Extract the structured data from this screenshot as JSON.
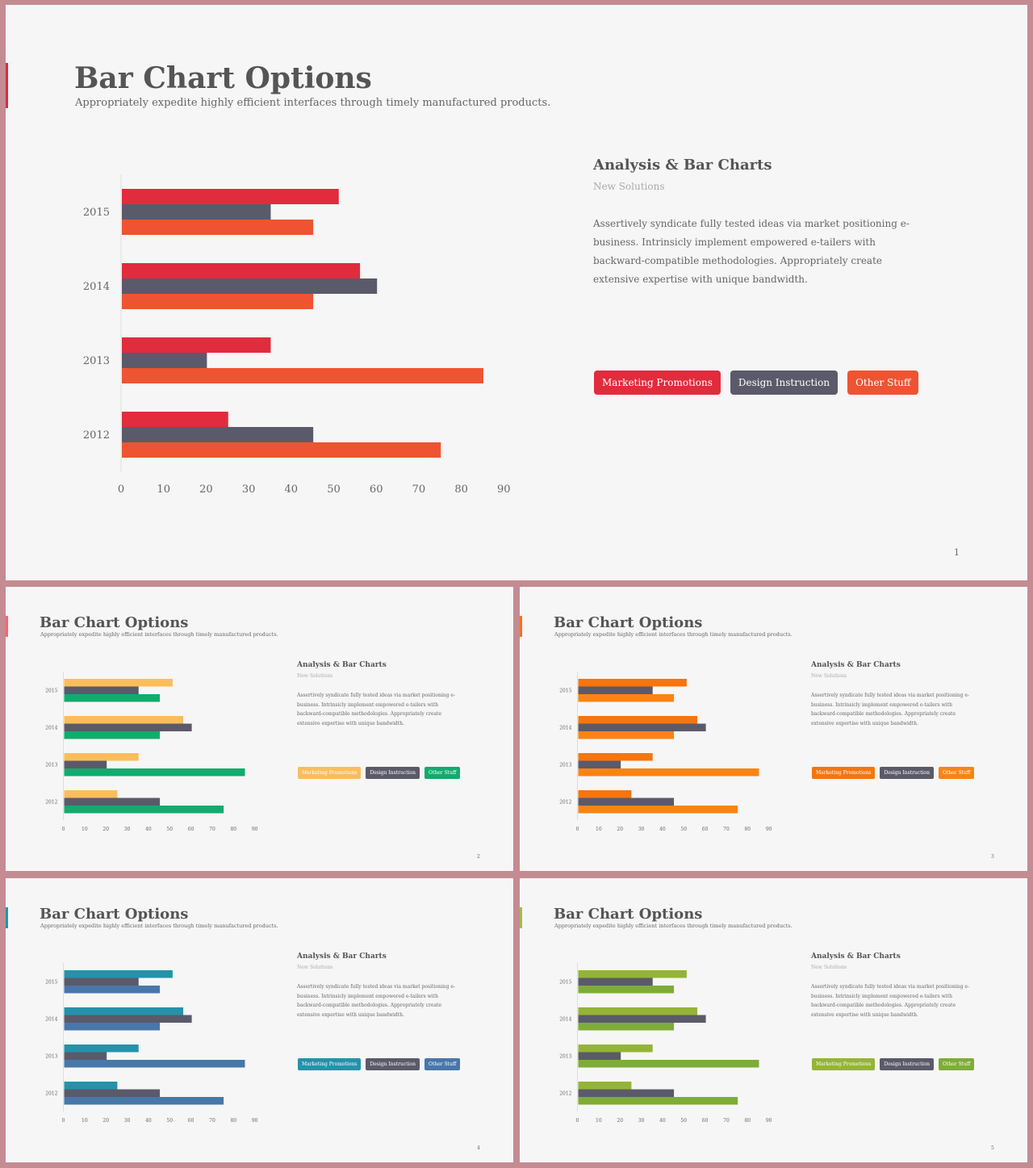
{
  "slides": [
    {
      "size": "large",
      "title": "Bar Chart Options",
      "subtitle": "Appropriately expedite highly efficient interfaces through timely manufactured products.",
      "heading": "Analysis & Bar Charts",
      "sub_heading": "New Solutions",
      "paragraph": "Assertively syndicate fully tested ideas via market positioning e-business. Intrinsicly implement empowered e-tailers with backward-compatible methodologies. Appropriately create extensive expertise with unique bandwidth.",
      "legend": [
        "Marketing Promotions",
        "Design Instruction",
        "Other Stuff"
      ],
      "page_number": "1",
      "colors": {
        "accent": "#d42e3e",
        "series": [
          "#e02c3c",
          "#5a5a6a",
          "#ee5431"
        ]
      }
    },
    {
      "size": "small",
      "title": "Bar Chart Options",
      "subtitle": "Appropriately expedite highly efficient interfaces through timely manufactured products.",
      "heading": "Analysis & Bar Charts",
      "sub_heading": "New Solutions",
      "paragraph": "Assertively syndicate fully tested ideas via market positioning e-business. Intrinsicly implement empowered e-tailers with backward-compatible methodologies. Appropriately create extensive expertise with unique bandwidth.",
      "legend": [
        "Marketing Promotions",
        "Design Instruction",
        "Other Stuff"
      ],
      "page_number": "2",
      "colors": {
        "accent": "#f06a6a",
        "series": [
          "#fbbd5b",
          "#5a5a6a",
          "#12ab6e"
        ]
      }
    },
    {
      "size": "small",
      "title": "Bar Chart Options",
      "subtitle": "Appropriately expedite highly efficient interfaces through timely manufactured products.",
      "heading": "Analysis & Bar Charts",
      "sub_heading": "New Solutions",
      "paragraph": "Assertively syndicate fully tested ideas via market positioning e-business. Intrinsicly implement empowered e-tailers with backward-compatible methodologies. Appropriately create extensive expertise with unique bandwidth.",
      "legend": [
        "Marketing Promotions",
        "Design Instruction",
        "Other Stuff"
      ],
      "page_number": "3",
      "colors": {
        "accent": "#f5711d",
        "series": [
          "#f5750f",
          "#5a5a6a",
          "#f98414"
        ]
      }
    },
    {
      "size": "small",
      "title": "Bar Chart Options",
      "subtitle": "Appropriately expedite highly efficient interfaces through timely manufactured products.",
      "heading": "Analysis & Bar Charts",
      "sub_heading": "New Solutions",
      "paragraph": "Assertively syndicate fully tested ideas via market positioning e-business. Intrinsicly implement empowered e-tailers with backward-compatible methodologies. Appropriately create extensive expertise with unique bandwidth.",
      "legend": [
        "Marketing Promotions",
        "Design Instruction",
        "Other Stuff"
      ],
      "page_number": "4",
      "colors": {
        "accent": "#2197a8",
        "series": [
          "#2592aa",
          "#5a5a6a",
          "#4877aa"
        ]
      }
    },
    {
      "size": "small",
      "title": "Bar Chart Options",
      "subtitle": "Appropriately expedite highly efficient interfaces through timely manufactured products.",
      "heading": "Analysis & Bar Charts",
      "sub_heading": "New Solutions",
      "paragraph": "Assertively syndicate fully tested ideas via market positioning e-business. Intrinsicly implement empowered e-tailers with backward-compatible methodologies. Appropriately create extensive expertise with unique bandwidth.",
      "legend": [
        "Marketing Promotions",
        "Design Instruction",
        "Other Stuff"
      ],
      "page_number": "5",
      "colors": {
        "accent": "#a9b94a",
        "series": [
          "#94b437",
          "#5a5a6a",
          "#7fac38"
        ]
      }
    }
  ],
  "chart_data": {
    "type": "bar",
    "orientation": "horizontal",
    "categories": [
      "2015",
      "2014",
      "2013",
      "2012"
    ],
    "series": [
      {
        "name": "Marketing Promotions",
        "values": [
          51,
          56,
          35,
          25
        ]
      },
      {
        "name": "Design Instruction",
        "values": [
          35,
          60,
          20,
          45
        ]
      },
      {
        "name": "Other Stuff",
        "values": [
          45,
          45,
          85,
          75
        ]
      }
    ],
    "xticks": [
      "0",
      "10",
      "20",
      "30",
      "40",
      "50",
      "60",
      "70",
      "80",
      "90"
    ],
    "xlim": [
      0,
      90
    ],
    "grid": false,
    "legend_position": "right"
  }
}
